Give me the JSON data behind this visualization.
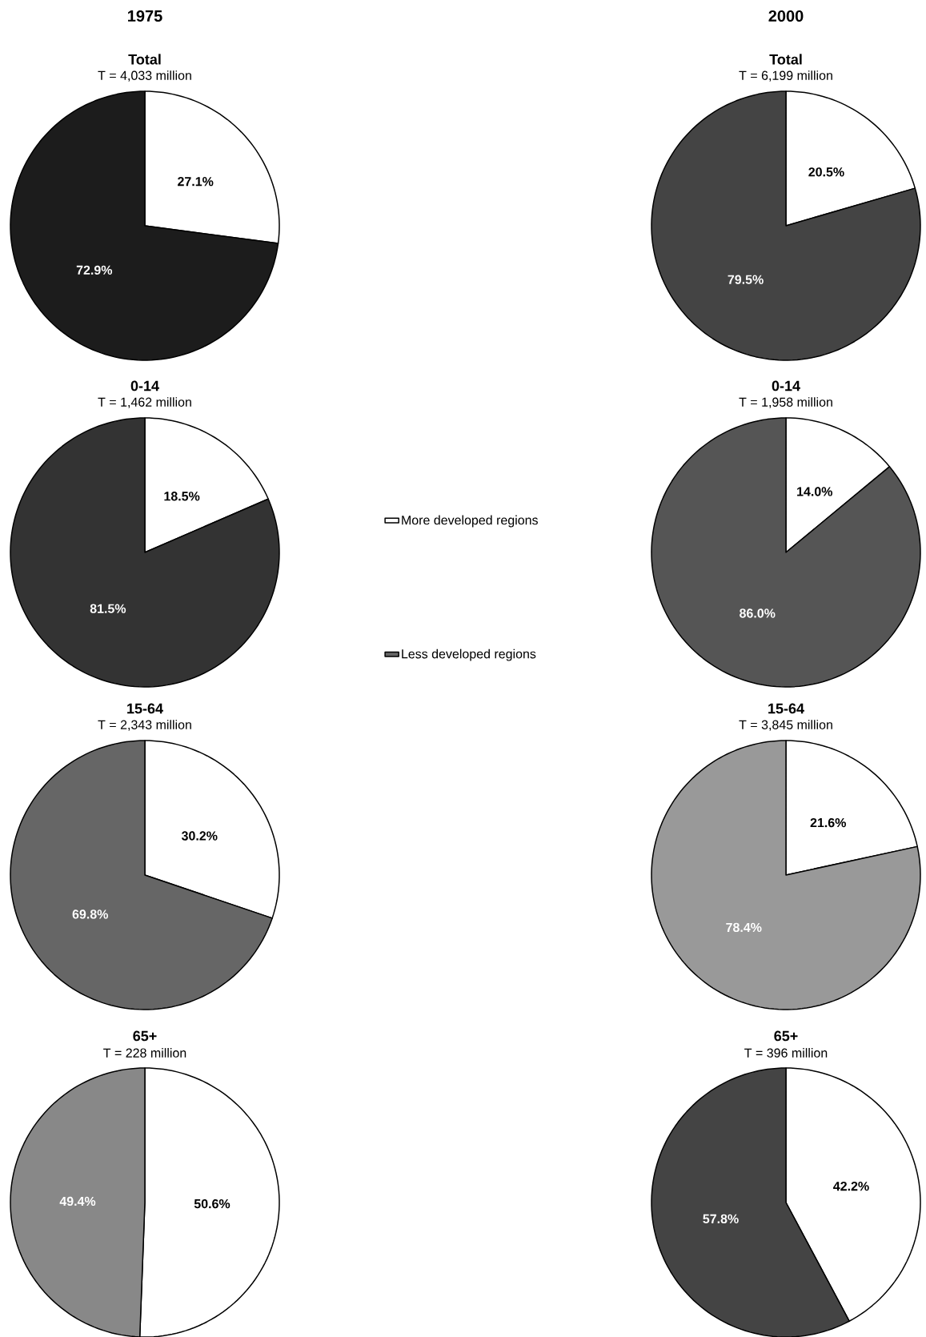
{
  "chart_data": [
    {
      "type": "pie",
      "annotations": [
        "1975"
      ],
      "title": "Total",
      "subtitle": "T = 4,033 million",
      "categories": [
        null,
        null
      ],
      "values": [
        27.1,
        72.9
      ],
      "value_labels": [
        "27.1%",
        "72.9%"
      ],
      "colors": [
        "#ffffff",
        "#1c1c1c"
      ]
    },
    {
      "type": "pie",
      "annotations": [
        "2000"
      ],
      "title": "Total",
      "subtitle": "T = 6,199 million",
      "categories": [
        null,
        null
      ],
      "values": [
        20.5,
        79.5
      ],
      "value_labels": [
        "20.5%",
        "79.5%"
      ],
      "colors": [
        "#ffffff",
        "#444444"
      ]
    },
    {
      "type": "pie",
      "title": "0-14",
      "subtitle": "T = 1,462 million",
      "categories": [
        null,
        null
      ],
      "values": [
        18.5,
        81.5
      ],
      "value_labels": [
        "18.5%",
        "81.5%"
      ],
      "colors": [
        "#ffffff",
        "#333333"
      ]
    },
    {
      "type": "pie",
      "title": "0-14",
      "subtitle": "T = 1,958 million",
      "categories": [
        null,
        null
      ],
      "values": [
        14.0,
        86.0
      ],
      "value_labels": [
        "14.0%",
        "86.0%"
      ],
      "colors": [
        "#ffffff",
        "#555555"
      ]
    },
    {
      "type": "pie",
      "legend": "right",
      "title": "15-64",
      "subtitle": "T = 2,343 million",
      "categories": [
        "More developed regions",
        "Less developed regions"
      ],
      "values": [
        30.2,
        69.8
      ],
      "value_labels": [
        "30.2%",
        "69.8%"
      ],
      "colors": [
        "#ffffff",
        "#666666"
      ]
    },
    {
      "type": "pie",
      "title": "15-64",
      "subtitle": "T = 3,845 million",
      "categories": [
        null,
        null
      ],
      "values": [
        21.6,
        78.4
      ],
      "value_labels": [
        "21.6%",
        "78.4%"
      ],
      "colors": [
        "#ffffff",
        "#999999"
      ]
    },
    {
      "type": "pie",
      "title": "65+",
      "subtitle": "T = 228 million",
      "categories": [
        null,
        null
      ],
      "values": [
        50.6,
        49.4
      ],
      "value_labels": [
        "50.6%",
        "49.4%"
      ],
      "colors": [
        "#ffffff",
        "#888888"
      ]
    },
    {
      "type": "pie",
      "title": "65+",
      "subtitle": "T = 396 million",
      "categories": [
        null,
        null
      ],
      "values": [
        42.2,
        57.8
      ],
      "value_labels": [
        "42.2%",
        "57.8%"
      ],
      "colors": [
        "#ffffff",
        "#444444"
      ]
    }
  ]
}
